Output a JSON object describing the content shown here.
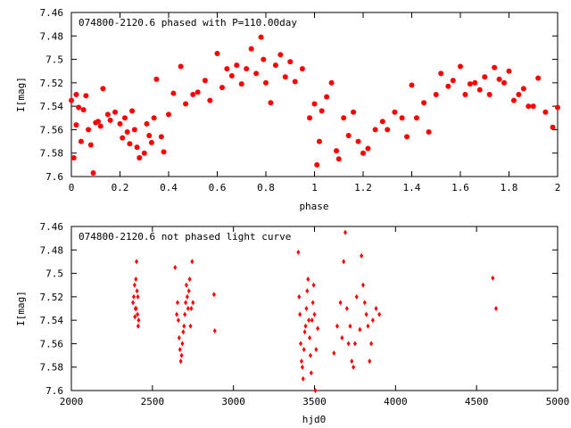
{
  "chart_data": [
    {
      "type": "scatter",
      "title": "074800-2120.6 phased with P=110.00day",
      "xlabel": "phase",
      "ylabel": "I[mag]",
      "xlim": [
        0,
        2
      ],
      "ylim": [
        7.46,
        7.6
      ],
      "y_inverted": true,
      "xticks": [
        "0",
        "0.2",
        "0.4",
        "0.6",
        "0.8",
        "1",
        "1.2",
        "1.4",
        "1.6",
        "1.8",
        "2"
      ],
      "yticks": [
        "7.46",
        "7.48",
        "7.5",
        "7.52",
        "7.54",
        "7.56",
        "7.58",
        "7.6"
      ],
      "grid": false,
      "marker": "filled-circle",
      "color": "#ff0000",
      "x": [
        0.0,
        0.01,
        0.02,
        0.02,
        0.03,
        0.04,
        0.05,
        0.06,
        0.07,
        0.08,
        0.09,
        0.1,
        0.11,
        0.12,
        0.13,
        0.15,
        0.16,
        0.18,
        0.2,
        0.21,
        0.22,
        0.23,
        0.24,
        0.25,
        0.26,
        0.27,
        0.28,
        0.3,
        0.31,
        0.32,
        0.33,
        0.34,
        0.35,
        0.37,
        0.38,
        0.4,
        0.42,
        0.45,
        0.47,
        0.5,
        0.52,
        0.55,
        0.57,
        0.6,
        0.62,
        0.64,
        0.66,
        0.68,
        0.7,
        0.72,
        0.74,
        0.76,
        0.78,
        0.79,
        0.8,
        0.82,
        0.84,
        0.86,
        0.88,
        0.9,
        0.92,
        0.95,
        0.98,
        1.0,
        1.01,
        1.02,
        1.03,
        1.05,
        1.07,
        1.09,
        1.1,
        1.12,
        1.14,
        1.16,
        1.18,
        1.2,
        1.22,
        1.25,
        1.28,
        1.3,
        1.33,
        1.36,
        1.38,
        1.4,
        1.42,
        1.45,
        1.47,
        1.5,
        1.52,
        1.55,
        1.57,
        1.6,
        1.62,
        1.64,
        1.66,
        1.68,
        1.7,
        1.72,
        1.74,
        1.76,
        1.78,
        1.8,
        1.82,
        1.84,
        1.86,
        1.88,
        1.9,
        1.92,
        1.95,
        1.98,
        2.0
      ],
      "y": [
        7.535,
        7.584,
        7.53,
        7.556,
        7.541,
        7.57,
        7.543,
        7.531,
        7.56,
        7.573,
        7.597,
        7.554,
        7.553,
        7.557,
        7.525,
        7.547,
        7.552,
        7.545,
        7.555,
        7.567,
        7.55,
        7.562,
        7.572,
        7.544,
        7.56,
        7.575,
        7.584,
        7.58,
        7.555,
        7.565,
        7.571,
        7.55,
        7.517,
        7.566,
        7.579,
        7.547,
        7.529,
        7.506,
        7.538,
        7.53,
        7.528,
        7.518,
        7.535,
        7.495,
        7.524,
        7.508,
        7.514,
        7.505,
        7.521,
        7.508,
        7.491,
        7.512,
        7.481,
        7.5,
        7.52,
        7.537,
        7.505,
        7.496,
        7.515,
        7.502,
        7.519,
        7.508,
        7.55,
        7.538,
        7.59,
        7.57,
        7.544,
        7.532,
        7.52,
        7.578,
        7.585,
        7.55,
        7.565,
        7.545,
        7.57,
        7.58,
        7.576,
        7.56,
        7.553,
        7.56,
        7.545,
        7.55,
        7.566,
        7.522,
        7.55,
        7.537,
        7.562,
        7.53,
        7.512,
        7.523,
        7.518,
        7.506,
        7.53,
        7.521,
        7.52,
        7.526,
        7.515,
        7.53,
        7.507,
        7.517,
        7.52,
        7.51,
        7.535,
        7.53,
        7.525,
        7.54,
        7.54,
        7.516,
        7.545,
        7.558,
        7.541
      ]
    },
    {
      "type": "scatter",
      "title": "074800-2120.6 not phased light curve",
      "xlabel": "hjd0",
      "ylabel": "I[mag]",
      "xlim": [
        2000,
        5000
      ],
      "ylim": [
        7.46,
        7.6
      ],
      "y_inverted": true,
      "xticks": [
        "2000",
        "2500",
        "3000",
        "3500",
        "4000",
        "4500",
        "5000"
      ],
      "yticks": [
        "7.46",
        "7.48",
        "7.5",
        "7.52",
        "7.54",
        "7.56",
        "7.58",
        "7.6"
      ],
      "grid": false,
      "marker": "diamond",
      "color": "#ff0000",
      "x": [
        2380,
        2385,
        2390,
        2392,
        2395,
        2398,
        2400,
        2402,
        2405,
        2408,
        2410,
        2412,
        2415,
        2640,
        2650,
        2655,
        2660,
        2665,
        2670,
        2675,
        2680,
        2685,
        2690,
        2695,
        2700,
        2705,
        2710,
        2715,
        2720,
        2725,
        2730,
        2735,
        2740,
        2745,
        2750,
        2880,
        2885,
        3400,
        3405,
        3410,
        3415,
        3420,
        3425,
        3430,
        3435,
        3440,
        3445,
        3450,
        3455,
        3460,
        3465,
        3470,
        3475,
        3480,
        3485,
        3490,
        3495,
        3500,
        3505,
        3510,
        3520,
        3620,
        3640,
        3660,
        3670,
        3680,
        3690,
        3700,
        3710,
        3720,
        3730,
        3740,
        3750,
        3760,
        3780,
        3790,
        3800,
        3810,
        3820,
        3830,
        3840,
        3850,
        3860,
        3880,
        3900,
        4600,
        4620
      ],
      "y": [
        7.525,
        7.52,
        7.51,
        7.537,
        7.53,
        7.505,
        7.53,
        7.49,
        7.515,
        7.535,
        7.52,
        7.545,
        7.54,
        7.495,
        7.535,
        7.525,
        7.54,
        7.555,
        7.565,
        7.575,
        7.57,
        7.56,
        7.55,
        7.545,
        7.535,
        7.525,
        7.51,
        7.52,
        7.53,
        7.515,
        7.505,
        7.545,
        7.53,
        7.49,
        7.525,
        7.518,
        7.549,
        7.482,
        7.52,
        7.535,
        7.56,
        7.575,
        7.58,
        7.59,
        7.565,
        7.55,
        7.545,
        7.53,
        7.515,
        7.505,
        7.54,
        7.555,
        7.57,
        7.585,
        7.54,
        7.525,
        7.51,
        7.535,
        7.6,
        7.565,
        7.547,
        7.568,
        7.545,
        7.525,
        7.555,
        7.49,
        7.465,
        7.53,
        7.56,
        7.545,
        7.575,
        7.58,
        7.56,
        7.52,
        7.548,
        7.485,
        7.51,
        7.525,
        7.535,
        7.545,
        7.575,
        7.56,
        7.54,
        7.53,
        7.535,
        7.504,
        7.53
      ]
    }
  ]
}
